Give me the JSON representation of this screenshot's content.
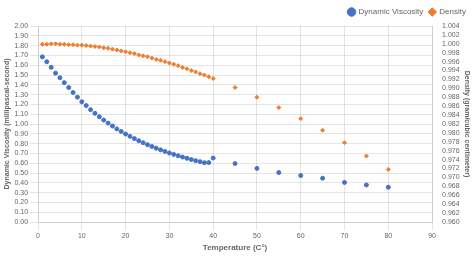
{
  "chart_data": {
    "type": "scatter",
    "xlabel": "Temperature (C°)",
    "ylabel": "Dynamic Viscosity (millipascal-second)",
    "y2label": "Density (gram/cubic centimeter)",
    "x": [
      1,
      2,
      3,
      4,
      5,
      6,
      7,
      8,
      9,
      10,
      11,
      12,
      13,
      14,
      15,
      16,
      17,
      18,
      19,
      20,
      21,
      22,
      23,
      24,
      25,
      26,
      27,
      28,
      29,
      30,
      31,
      32,
      33,
      34,
      35,
      36,
      37,
      38,
      39,
      40,
      45,
      50,
      55,
      60,
      65,
      70,
      75,
      80
    ],
    "series": [
      {
        "name": "Dynamic Viscosity",
        "color": "#4472C4",
        "marker": "circle",
        "values": [
          1.685,
          1.635,
          1.578,
          1.519,
          1.472,
          1.422,
          1.372,
          1.321,
          1.274,
          1.227,
          1.188,
          1.146,
          1.109,
          1.074,
          1.04,
          1.009,
          0.979,
          0.95,
          0.924,
          0.898,
          0.874,
          0.851,
          0.829,
          0.809,
          0.789,
          0.771,
          0.753,
          0.736,
          0.72,
          0.704,
          0.69,
          0.676,
          0.663,
          0.65,
          0.638,
          0.626,
          0.616,
          0.605,
          0.606,
          0.653,
          0.596,
          0.547,
          0.504,
          0.474,
          0.447,
          0.404,
          0.378,
          0.355
        ]
      },
      {
        "name": "Density",
        "color": "#ED7D31",
        "marker": "diamond",
        "axis": "y2",
        "values": [
          0.9999,
          0.9999,
          1.0,
          1.0,
          0.9999,
          0.9999,
          0.9998,
          0.9998,
          0.9997,
          0.9997,
          0.9996,
          0.9995,
          0.9994,
          0.9993,
          0.9991,
          0.999,
          0.9988,
          0.9986,
          0.9984,
          0.9982,
          0.998,
          0.9978,
          0.9975,
          0.9973,
          0.9971,
          0.9968,
          0.9965,
          0.9963,
          0.996,
          0.9957,
          0.9954,
          0.9951,
          0.9947,
          0.9944,
          0.994,
          0.9937,
          0.9933,
          0.993,
          0.9926,
          0.9922,
          0.9902,
          0.988,
          0.9857,
          0.9832,
          0.9806,
          0.9778,
          0.9748,
          0.9718
        ]
      }
    ],
    "xlim": [
      0,
      90
    ],
    "xticks": [
      0,
      10,
      20,
      30,
      40,
      50,
      60,
      70,
      80,
      90
    ],
    "ylim": [
      0.0,
      2.0
    ],
    "yticks": [
      {
        "value": 0.0,
        "label": "0.00"
      },
      {
        "value": 0.1,
        "label": "0.10"
      },
      {
        "value": 0.2,
        "label": "0.20"
      },
      {
        "value": 0.3,
        "label": "0.30"
      },
      {
        "value": 0.4,
        "label": "0.40"
      },
      {
        "value": 0.5,
        "label": "0.50"
      },
      {
        "value": 0.6,
        "label": "0.60"
      },
      {
        "value": 0.7,
        "label": "0.70"
      },
      {
        "value": 0.8,
        "label": "0.80"
      },
      {
        "value": 0.9,
        "label": "0.90"
      },
      {
        "value": 1.0,
        "label": "1.00"
      },
      {
        "value": 1.1,
        "label": "1.10"
      },
      {
        "value": 1.2,
        "label": "1.20"
      },
      {
        "value": 1.3,
        "label": "1.30"
      },
      {
        "value": 1.4,
        "label": "1.40"
      },
      {
        "value": 1.5,
        "label": "1.50"
      },
      {
        "value": 1.6,
        "label": "1.60"
      },
      {
        "value": 1.7,
        "label": "1.70"
      },
      {
        "value": 1.8,
        "label": "1.80"
      },
      {
        "value": 1.9,
        "label": "1.90"
      },
      {
        "value": 2.0,
        "label": "2.00"
      }
    ],
    "y2lim": [
      0.96,
      1.004
    ],
    "y2ticks": [
      {
        "value": 0.96,
        "label": "0.960"
      },
      {
        "value": 0.962,
        "label": "0.962"
      },
      {
        "value": 0.964,
        "label": "0.964"
      },
      {
        "value": 0.966,
        "label": "0.966"
      },
      {
        "value": 0.968,
        "label": "0.968"
      },
      {
        "value": 0.97,
        "label": "0.970"
      },
      {
        "value": 0.972,
        "label": "0.972"
      },
      {
        "value": 0.974,
        "label": "0.974"
      },
      {
        "value": 0.976,
        "label": "0.976"
      },
      {
        "value": 0.978,
        "label": "0.978"
      },
      {
        "value": 0.98,
        "label": "0.980"
      },
      {
        "value": 0.982,
        "label": "0.982"
      },
      {
        "value": 0.984,
        "label": "0.984"
      },
      {
        "value": 0.986,
        "label": "0.986"
      },
      {
        "value": 0.988,
        "label": "0.988"
      },
      {
        "value": 0.99,
        "label": "0.990"
      },
      {
        "value": 0.992,
        "label": "0.992"
      },
      {
        "value": 0.994,
        "label": "0.994"
      },
      {
        "value": 0.996,
        "label": "0.996"
      },
      {
        "value": 0.998,
        "label": "0.998"
      },
      {
        "value": 1.0,
        "label": "1.000"
      },
      {
        "value": 1.002,
        "label": "1.002"
      },
      {
        "value": 1.004,
        "label": "1.004"
      }
    ],
    "grid": true,
    "legend": "upper right"
  }
}
